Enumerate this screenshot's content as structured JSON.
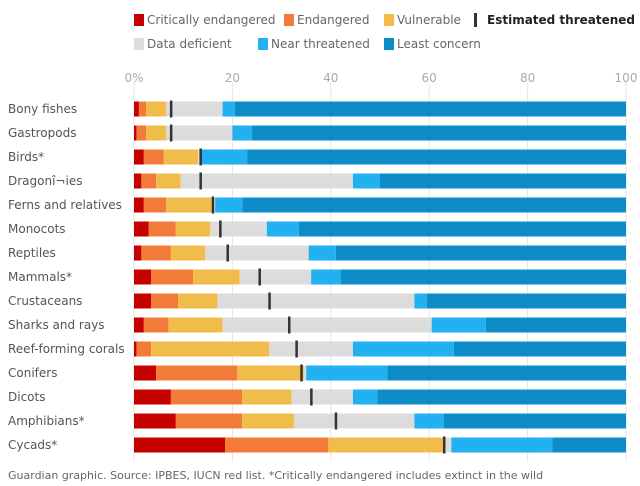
{
  "chart_data": {
    "type": "bar",
    "orientation": "horizontal",
    "stacked": true,
    "xlim": [
      0,
      100
    ],
    "ticks": [
      {
        "value": 0,
        "label": "0%"
      },
      {
        "value": 20,
        "label": "20"
      },
      {
        "value": 40,
        "label": "40"
      },
      {
        "value": 60,
        "label": "60"
      },
      {
        "value": 80,
        "label": "80"
      },
      {
        "value": 100,
        "label": "100"
      }
    ],
    "grid": "vertical",
    "legend_position": "top",
    "categories": [
      "Bony fishes",
      "Gastropods",
      "Birds*",
      "Dragonflies",
      "Ferns and relatives",
      "Monocots",
      "Reptiles",
      "Mammals*",
      "Crustaceans",
      "Sharks and rays",
      "Reef-forming corals",
      "Conifers",
      "Dicots",
      "Amphibians*",
      "Cycads*"
    ],
    "display_labels": [
      "Bony fishes",
      "Gastropods",
      "Birds*",
      "Dragonî¬ies",
      "Ferns and relatives",
      "Monocots",
      "Reptiles",
      "Mammals*",
      "Crustaceans",
      "Sharks and rays",
      "Reef-forming corals",
      "Conifers",
      "Dicots",
      "Amphibians*",
      "Cycads*"
    ],
    "series": [
      {
        "name": "Critically endangered",
        "color": "#c70000",
        "values": [
          1.0,
          0.5,
          2.0,
          1.5,
          2.0,
          3.0,
          1.5,
          3.5,
          3.5,
          2.0,
          0.5,
          4.5,
          7.5,
          8.5,
          18.5
        ]
      },
      {
        "name": "Endangered",
        "color": "#f27b3a",
        "values": [
          1.5,
          2.0,
          4.0,
          3.0,
          4.5,
          5.5,
          6.0,
          8.5,
          5.5,
          5.0,
          3.0,
          16.5,
          14.5,
          13.5,
          21.0
        ]
      },
      {
        "name": "Vulnerable",
        "color": "#f2bc4b",
        "values": [
          4.0,
          4.0,
          7.0,
          5.0,
          9.5,
          7.0,
          7.0,
          9.5,
          8.0,
          11.0,
          24.0,
          13.5,
          10.0,
          10.5,
          23.5
        ]
      },
      {
        "name": "Data deficient",
        "color": "#dcdcdc",
        "values": [
          11.5,
          13.5,
          0.5,
          35.0,
          0.5,
          11.5,
          21.0,
          14.5,
          40.0,
          42.5,
          17.0,
          0.5,
          12.5,
          24.5,
          1.5
        ]
      },
      {
        "name": "Near threatened",
        "color": "#21b1f0",
        "values": [
          2.5,
          4.0,
          9.5,
          5.5,
          5.5,
          6.5,
          5.5,
          6.0,
          2.5,
          11.0,
          20.5,
          16.5,
          5.0,
          6.0,
          20.5
        ]
      },
      {
        "name": "Least concern",
        "color": "#0e8cc8",
        "values": [
          79.5,
          76.0,
          77.0,
          50.0,
          78.0,
          66.5,
          59.0,
          58.0,
          40.5,
          28.5,
          35.0,
          48.5,
          50.5,
          37.0,
          15.0
        ]
      }
    ],
    "estimated_threatened": {
      "name": "Estimated threatened",
      "color": "#333333",
      "values": [
        7.5,
        7.5,
        13.5,
        13.5,
        16.0,
        17.5,
        19.0,
        25.5,
        27.5,
        31.5,
        33.0,
        34.0,
        36.0,
        41.0,
        63.0
      ]
    },
    "legend": [
      {
        "name": "Critically endangered",
        "color": "#c70000"
      },
      {
        "name": "Endangered",
        "color": "#f27b3a"
      },
      {
        "name": "Vulnerable",
        "color": "#f2bc4b"
      },
      {
        "name": "Estimated threatened",
        "color": "#333333"
      },
      {
        "name": "Data deficient",
        "color": "#dcdcdc"
      },
      {
        "name": "Near threatened",
        "color": "#21b1f0"
      },
      {
        "name": "Least concern",
        "color": "#0e8cc8"
      }
    ],
    "source": "Guardian graphic. Source: IPBES, IUCN red list. *Critically endangered includes extinct in the wild"
  }
}
